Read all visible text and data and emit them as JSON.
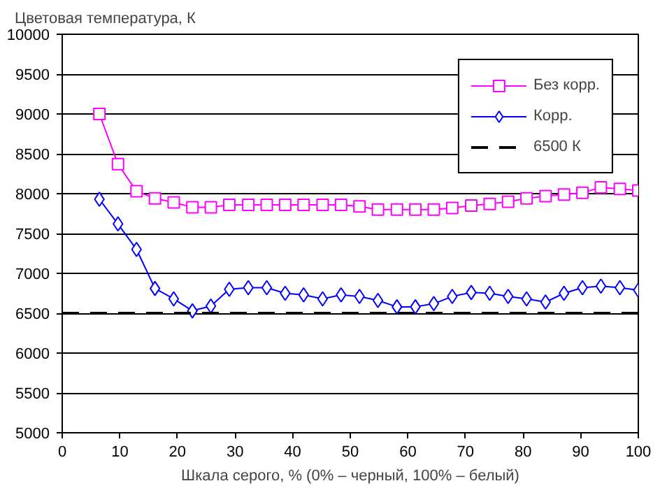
{
  "chart_data": {
    "type": "line",
    "ylabel": "Цветовая температура, К",
    "xlabel": "Шкала серого, % (0% – черный, 100% – белый)",
    "x": [
      6.45,
      9.68,
      12.9,
      16.1,
      19.35,
      22.6,
      25.8,
      29.0,
      32.3,
      35.5,
      38.7,
      41.9,
      45.2,
      48.4,
      51.6,
      54.8,
      58.1,
      61.3,
      64.5,
      67.7,
      71.0,
      74.2,
      77.4,
      80.6,
      83.9,
      87.1,
      90.3,
      93.5,
      96.8,
      100
    ],
    "series": [
      {
        "name": "Без корр.",
        "color": "#ff00ff",
        "marker": "square",
        "values": [
          9000,
          8370,
          8030,
          7940,
          7890,
          7830,
          7830,
          7860,
          7860,
          7860,
          7860,
          7860,
          7860,
          7860,
          7840,
          7800,
          7800,
          7800,
          7800,
          7820,
          7850,
          7870,
          7900,
          7940,
          7970,
          7990,
          8010,
          8080,
          8060,
          8040
        ]
      },
      {
        "name": "Корр.",
        "color": "#0000ff",
        "marker": "diamond",
        "values": [
          7930,
          7620,
          7300,
          6810,
          6680,
          6530,
          6590,
          6800,
          6820,
          6820,
          6750,
          6730,
          6680,
          6730,
          6710,
          6660,
          6580,
          6580,
          6620,
          6710,
          6760,
          6750,
          6710,
          6680,
          6640,
          6750,
          6820,
          6840,
          6820,
          6790
        ]
      }
    ],
    "ref_lines": [
      {
        "axis": "y",
        "value": 6500,
        "label": "6500 К",
        "color": "#000000",
        "line_style": "dashed"
      }
    ],
    "xlim": [
      0,
      100
    ],
    "ylim": [
      5000,
      10000
    ],
    "xticks": [
      0,
      10,
      20,
      30,
      40,
      50,
      60,
      70,
      80,
      90,
      100
    ],
    "yticks": [
      5000,
      5500,
      6000,
      6500,
      7000,
      7500,
      8000,
      8500,
      9000,
      9500,
      10000
    ],
    "grid": "y",
    "legend": "top right"
  }
}
